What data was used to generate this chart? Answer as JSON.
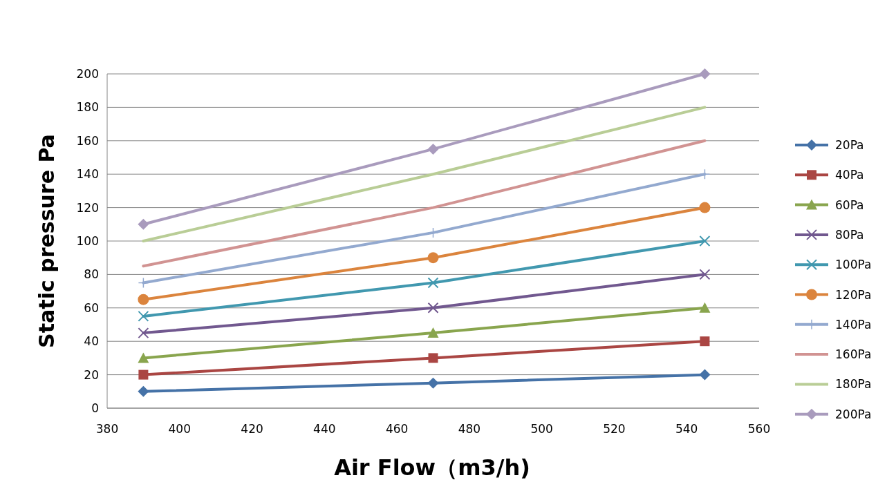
{
  "chart_data": {
    "type": "line",
    "xlabel": "Air Flow（m3/h)",
    "ylabel": "Static pressure Pa",
    "x": [
      390,
      470,
      545
    ],
    "series": [
      {
        "name": "20Pa",
        "color": "#4572a7",
        "marker": "diamond",
        "values": [
          10,
          15,
          20
        ]
      },
      {
        "name": "40Pa",
        "color": "#aa4643",
        "marker": "square",
        "values": [
          20,
          30,
          40
        ]
      },
      {
        "name": "60Pa",
        "color": "#89a54e",
        "marker": "triangle",
        "values": [
          30,
          45,
          60
        ]
      },
      {
        "name": "80Pa",
        "color": "#71588f",
        "marker": "cross",
        "values": [
          45,
          60,
          80
        ]
      },
      {
        "name": "100Pa",
        "color": "#4198af",
        "marker": "cross",
        "values": [
          55,
          75,
          100
        ]
      },
      {
        "name": "120Pa",
        "color": "#db843d",
        "marker": "circle",
        "values": [
          65,
          90,
          120
        ]
      },
      {
        "name": "140Pa",
        "color": "#93a9cf",
        "marker": "plus",
        "values": [
          75,
          105,
          140
        ]
      },
      {
        "name": "160Pa",
        "color": "#d19392",
        "marker": "none",
        "values": [
          85,
          120,
          160
        ]
      },
      {
        "name": "180Pa",
        "color": "#b9cd96",
        "marker": "none",
        "values": [
          100,
          140,
          180
        ]
      },
      {
        "name": "200Pa",
        "color": "#a99bbd",
        "marker": "diamond",
        "values": [
          110,
          155,
          200
        ]
      }
    ],
    "xlim": [
      380,
      560
    ],
    "xticks": [
      380,
      400,
      420,
      440,
      460,
      480,
      500,
      520,
      540,
      560
    ],
    "ylim": [
      0,
      200
    ],
    "yticks": [
      0,
      20,
      40,
      60,
      80,
      100,
      120,
      140,
      160,
      180,
      200
    ],
    "grid": "y",
    "legend": "right",
    "line_style": "solid"
  }
}
